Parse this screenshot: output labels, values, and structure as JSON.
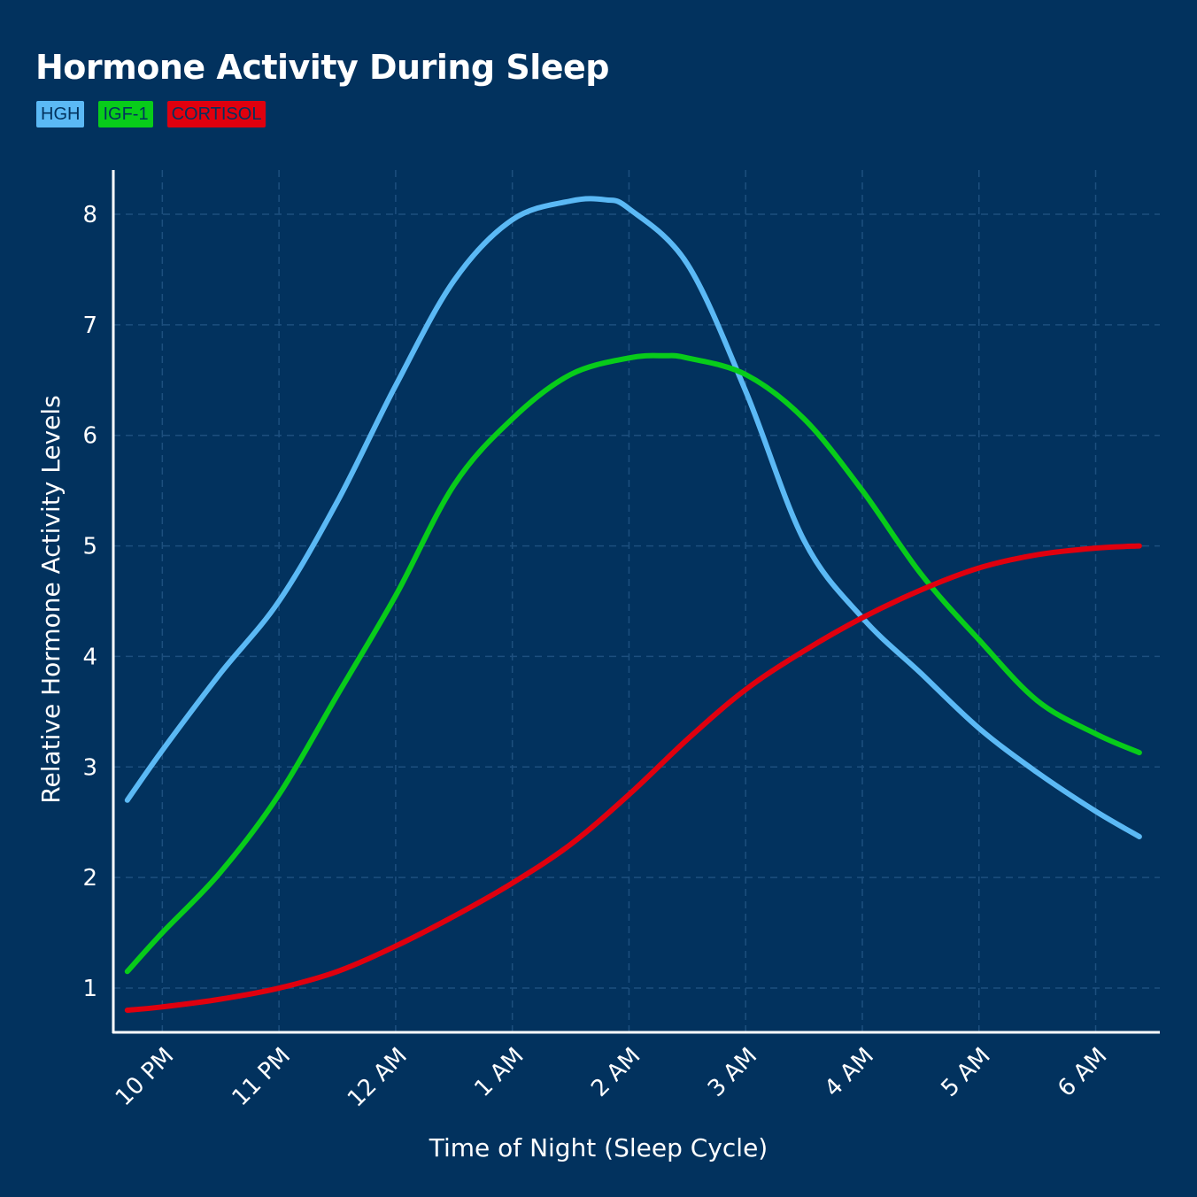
{
  "colors": {
    "background": "#02325E",
    "grid": "#1D4F7E",
    "axis": "#FFFFFF",
    "hgh": "#5BB9F5",
    "igf1": "#08CC1A",
    "cortisol": "#E0000E"
  },
  "chart_data": {
    "type": "line",
    "title": "Hormone Activity During Sleep",
    "xlabel": "Time of Night (Sleep Cycle)",
    "ylabel": "Relative Hormone Activity Levels",
    "x_tick_labels": [
      "10 PM",
      "11 PM",
      "12 AM",
      "1 AM",
      "2 AM",
      "3 AM",
      "4 AM",
      "5 AM",
      "6 AM"
    ],
    "x_ticks": [
      22,
      23,
      24,
      25,
      26,
      27,
      28,
      29,
      30
    ],
    "xlim": [
      21.58,
      30.55
    ],
    "y_ticks": [
      1,
      2,
      3,
      4,
      5,
      6,
      7,
      8
    ],
    "ylim": [
      0.6,
      8.4
    ],
    "grid": true,
    "legend_placement": "top-left",
    "series": [
      {
        "name": "HGH",
        "color": "#5BB9F5",
        "x": [
          21.7,
          22.0,
          22.5,
          23.0,
          23.5,
          24.0,
          24.5,
          25.0,
          25.5,
          25.8,
          26.0,
          26.5,
          27.0,
          27.5,
          28.0,
          28.5,
          29.0,
          29.5,
          30.0,
          30.375
        ],
        "y": [
          2.7,
          3.15,
          3.85,
          4.5,
          5.4,
          6.45,
          7.4,
          7.95,
          8.12,
          8.13,
          8.05,
          7.55,
          6.4,
          5.05,
          4.35,
          3.85,
          3.35,
          2.95,
          2.6,
          2.37
        ]
      },
      {
        "name": "IGF-1",
        "color": "#08CC1A",
        "x": [
          21.7,
          22.0,
          22.5,
          23.0,
          23.5,
          24.0,
          24.5,
          25.0,
          25.5,
          26.0,
          26.3,
          26.5,
          27.0,
          27.5,
          28.0,
          28.5,
          29.0,
          29.5,
          30.0,
          30.375
        ],
        "y": [
          1.15,
          1.5,
          2.05,
          2.75,
          3.65,
          4.55,
          5.55,
          6.15,
          6.55,
          6.7,
          6.72,
          6.7,
          6.55,
          6.15,
          5.5,
          4.75,
          4.15,
          3.6,
          3.3,
          3.13
        ]
      },
      {
        "name": "CORTISOL",
        "color": "#E0000E",
        "x": [
          21.7,
          22.0,
          22.5,
          23.0,
          23.5,
          24.0,
          24.5,
          25.0,
          25.5,
          26.0,
          26.5,
          27.0,
          27.5,
          28.0,
          28.5,
          29.0,
          29.5,
          30.0,
          30.375
        ],
        "y": [
          0.8,
          0.83,
          0.9,
          1.0,
          1.15,
          1.38,
          1.65,
          1.95,
          2.3,
          2.75,
          3.25,
          3.7,
          4.05,
          4.35,
          4.6,
          4.8,
          4.92,
          4.98,
          5.0
        ]
      }
    ]
  }
}
